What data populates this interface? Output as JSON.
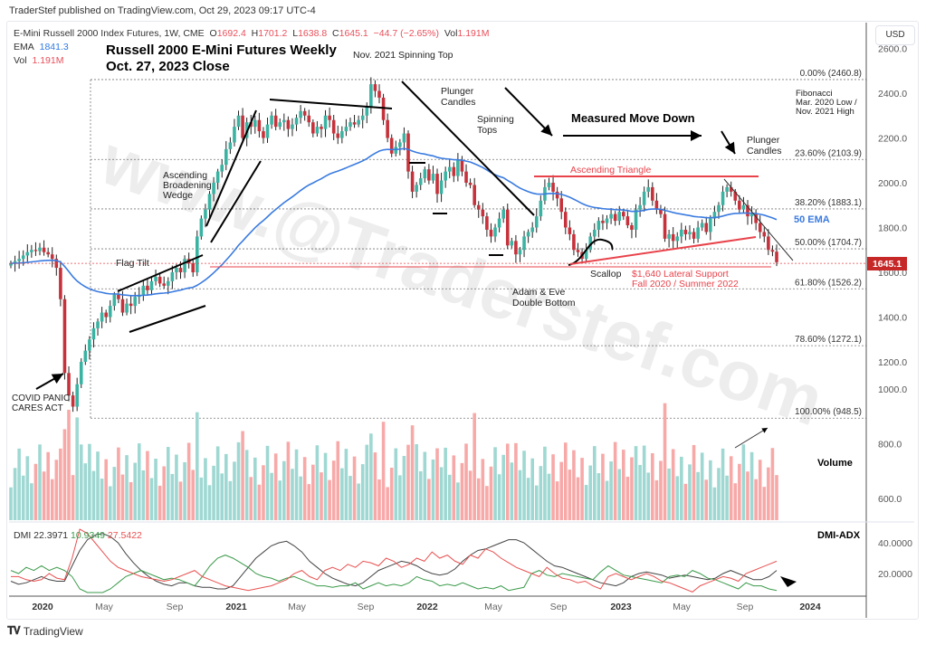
{
  "header": {
    "published": "TraderStef published on TradingView.com, Oct 29, 2023 09:17 UTC-4",
    "symbol": "E-Mini Russell 2000 Index Futures, 1W, CME",
    "open_label": "O",
    "open": "1692.4",
    "high_label": "H",
    "high": "1701.2",
    "low_label": "L",
    "low": "1638.8",
    "close_label": "C",
    "close": "1645.1",
    "change": "−44.7 (−2.65%)",
    "vol_label": "Vol",
    "vol": "1.191M",
    "ema_label": "EMA",
    "ema": "1841.3",
    "vol_row_label": "Vol",
    "vol_row": "1.191M",
    "currency": "USD"
  },
  "title": {
    "line1": "Russell 2000 E-Mini Futures Weekly",
    "line2": "Oct. 27, 2023 Close"
  },
  "footer": {
    "brand": "TradingView"
  },
  "colors": {
    "up": "#26a69a",
    "down": "#ef5350",
    "candle_up": "#3bb3a3",
    "candle_down": "#c6323b",
    "vol_up": "#9fd8d2",
    "vol_down": "#f7a9a8",
    "ema": "#3a7be0",
    "annot_red": "#e8434b",
    "price_tag": "#c62828",
    "grid_dot": "#888"
  },
  "chart_data": [
    {
      "type": "candlestick",
      "title": "Russell 2000 E-Mini Futures Weekly — Oct. 27, 2023 Close",
      "xlabel": "",
      "ylabel": "USD",
      "ylim": [
        520,
        2660
      ],
      "y_ticks": [
        600.0,
        800.0,
        1000.0,
        1200.0,
        1400.0,
        1600.0,
        1800.0,
        2000.0,
        2200.0,
        2400.0,
        2600.0
      ],
      "x_ticks": [
        "2020",
        "May",
        "Sep",
        "2021",
        "May",
        "Sep",
        "2022",
        "May",
        "Sep",
        "2023",
        "May",
        "Sep",
        "2024"
      ],
      "last_price": 1645.1,
      "ema50_last": 1841.3,
      "fibonacci": {
        "label": "Fibonacci\nMar. 2020 Low /\nNov. 2021 High",
        "levels": [
          {
            "label": "0.00% (2460.8)",
            "value": 2460.8
          },
          {
            "label": "23.60% (2103.9)",
            "value": 2103.9
          },
          {
            "label": "38.20% (1883.1)",
            "value": 1883.1
          },
          {
            "label": "50.00% (1704.7)",
            "value": 1704.7
          },
          {
            "label": "61.80% (1526.2)",
            "value": 1526.2
          },
          {
            "label": "78.60% (1272.1)",
            "value": 1272.1
          },
          {
            "label": "100.00% (948.5)",
            "value": 948.5
          }
        ]
      },
      "price_path_weekly_close": [
        1640,
        1650,
        1660,
        1675,
        1690,
        1700,
        1695,
        1710,
        1690,
        1680,
        1660,
        1620,
        1480,
        1150,
        1050,
        1000,
        1100,
        1200,
        1250,
        1300,
        1350,
        1380,
        1420,
        1400,
        1450,
        1500,
        1480,
        1420,
        1460,
        1450,
        1490,
        1500,
        1540,
        1520,
        1560,
        1580,
        1550,
        1540,
        1560,
        1600,
        1620,
        1600,
        1660,
        1640,
        1600,
        1760,
        1840,
        1880,
        1950,
        2000,
        2050,
        2080,
        2150,
        2180,
        2250,
        2300,
        2200,
        2270,
        2250,
        2280,
        2230,
        2200,
        2260,
        2300,
        2250,
        2270,
        2280,
        2240,
        2260,
        2290,
        2320,
        2300,
        2270,
        2220,
        2250,
        2240,
        2300,
        2280,
        2220,
        2200,
        2230,
        2250,
        2270,
        2260,
        2280,
        2300,
        2340,
        2440,
        2410,
        2380,
        2280,
        2200,
        2130,
        2160,
        2180,
        2220,
        2050,
        1960,
        1990,
        2020,
        2060,
        2010,
        2040,
        1950,
        2010,
        2050,
        2070,
        2030,
        2100,
        2050,
        2000,
        1990,
        1900,
        1880,
        1850,
        1790,
        1760,
        1800,
        1840,
        1880,
        1720,
        1740,
        1680,
        1700,
        1760,
        1780,
        1800,
        1850,
        1920,
        1980,
        2000,
        1960,
        1930,
        1870,
        1800,
        1770,
        1700,
        1690,
        1660,
        1700,
        1760,
        1790,
        1830,
        1820,
        1840,
        1860,
        1830,
        1870,
        1850,
        1810,
        1790,
        1880,
        1900,
        1960,
        1980,
        1920,
        1880,
        1860,
        1750,
        1770,
        1740,
        1760,
        1790,
        1770,
        1780,
        1750,
        1800,
        1820,
        1780,
        1840,
        1870,
        1900,
        1960,
        1980,
        1960,
        1920,
        1880,
        1900,
        1850,
        1860,
        1820,
        1780,
        1760,
        1700,
        1692,
        1645
      ],
      "volume": {
        "label": "Volume",
        "ylim": [
          500,
          1000
        ],
        "y_ticks": [
          600.0,
          800.0,
          1000.0
        ],
        "last": "1.191M"
      },
      "dmi": {
        "label": "DMI-ADX",
        "values": {
          "adx": 22.3971,
          "plus_di": 10.9349,
          "minus_di": 27.5422
        },
        "y_ticks": [
          20.0,
          40.0
        ],
        "series": [
          {
            "name": "ADX",
            "color": "#444",
            "values": [
              15,
              13,
              14,
              16,
              18,
              16,
              15,
              15,
              25,
              35,
              42,
              45,
              46,
              44,
              40,
              33,
              27,
              22,
              18,
              15,
              13,
              12,
              14,
              14,
              12,
              11,
              11,
              10,
              10,
              12,
              18,
              24,
              30,
              34,
              38,
              40,
              41,
              38,
              34,
              28,
              24,
              20,
              17,
              15,
              13,
              12,
              14,
              18,
              22,
              24,
              26,
              28,
              27,
              25,
              22,
              20,
              19,
              20,
              23,
              28,
              32,
              35,
              36,
              38,
              40,
              42,
              42,
              40,
              36,
              32,
              28,
              25,
              24,
              22,
              20,
              18,
              16,
              14,
              13,
              12,
              14,
              18,
              20,
              21,
              20,
              19,
              17,
              18,
              19,
              18,
              17,
              16,
              17,
              20,
              22,
              20,
              18,
              16,
              16,
              18,
              22
            ]
          },
          {
            "name": "+DI",
            "color": "#3a9a4a",
            "values": [
              22,
              20,
              24,
              22,
              25,
              22,
              24,
              22,
              18,
              10,
              5,
              3,
              6,
              10,
              14,
              18,
              20,
              22,
              20,
              18,
              16,
              17,
              16,
              14,
              12,
              18,
              25,
              30,
              32,
              30,
              27,
              24,
              20,
              18,
              17,
              15,
              17,
              18,
              16,
              14,
              12,
              12,
              11,
              12,
              12,
              14,
              10,
              12,
              14,
              12,
              13,
              12,
              14,
              18,
              16,
              15,
              12,
              13,
              12,
              14,
              12,
              10,
              11,
              10,
              12,
              9,
              10,
              11,
              20,
              22,
              19,
              18,
              20,
              19,
              18,
              17,
              16,
              21,
              25,
              22,
              19,
              18,
              17,
              16,
              15,
              14,
              18,
              19,
              18,
              22,
              20,
              17,
              16,
              14,
              12,
              10,
              14,
              12,
              12,
              10,
              9
            ]
          },
          {
            "name": "−DI",
            "color": "#e85050",
            "values": [
              18,
              18,
              16,
              15,
              16,
              20,
              17,
              16,
              30,
              50,
              46,
              40,
              34,
              28,
              24,
              22,
              20,
              18,
              17,
              16,
              15,
              16,
              18,
              20,
              22,
              18,
              16,
              14,
              12,
              11,
              10,
              9,
              10,
              11,
              12,
              14,
              16,
              20,
              22,
              18,
              16,
              22,
              24,
              22,
              26,
              24,
              28,
              27,
              25,
              30,
              28,
              24,
              26,
              30,
              28,
              34,
              30,
              32,
              28,
              26,
              32,
              30,
              36,
              34,
              30,
              27,
              24,
              22,
              20,
              18,
              24,
              20,
              17,
              16,
              14,
              15,
              12,
              10,
              18,
              20,
              18,
              16,
              18,
              20,
              18,
              15,
              14,
              12,
              10,
              8,
              12,
              14,
              16,
              18,
              17,
              15,
              20,
              22,
              24,
              26,
              28
            ]
          }
        ]
      },
      "annotations": [
        {
          "text": "Nov. 2021 Spinning Top"
        },
        {
          "text": "Plunger\nCandles"
        },
        {
          "text": "Spinning\nTops"
        },
        {
          "text": "Measured Move Down"
        },
        {
          "text": "Plunger\nCandles"
        },
        {
          "text": "Ascending Triangle"
        },
        {
          "text": "50 EMA"
        },
        {
          "text": "Ascending\nBroadening\nWedge"
        },
        {
          "text": "Flag Tilt"
        },
        {
          "text": "COVID PANIC\nCARES ACT"
        },
        {
          "text": "Adam & Eve\nDouble Bottom"
        },
        {
          "text": "Scallop"
        },
        {
          "text": "$1,640 Lateral Support\nFall 2020 / Summer 2022"
        },
        {
          "text": "Volume"
        },
        {
          "text": "DMI-ADX"
        }
      ],
      "watermark": "www.@Traderstef.com"
    }
  ]
}
